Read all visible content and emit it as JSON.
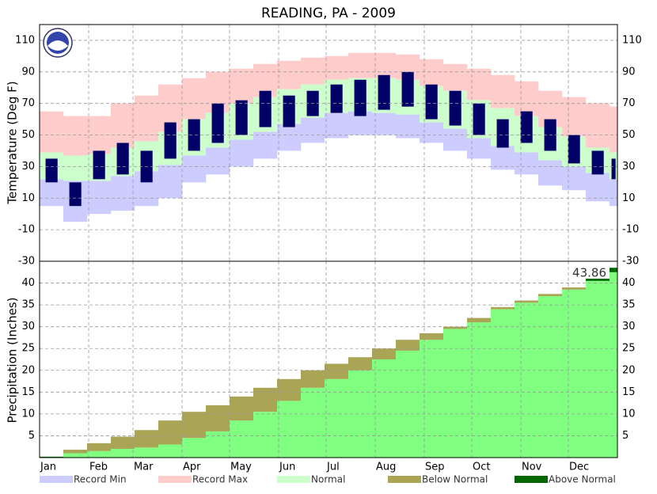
{
  "chart_data": [
    {
      "type": "climate-temperature",
      "title": "READING, PA - 2009",
      "y_label": "Temperature (Deg F)",
      "x": [
        1,
        16,
        31,
        46,
        61,
        76,
        91,
        106,
        121,
        136,
        151,
        166,
        181,
        196,
        211,
        226,
        241,
        256,
        271,
        286,
        301,
        316,
        331,
        346,
        361
      ],
      "xlim": [
        1,
        366
      ],
      "ylim": [
        -30,
        120
      ],
      "yticks": [
        -30,
        -10,
        10,
        30,
        50,
        70,
        90,
        110
      ],
      "grid": true,
      "series": [
        {
          "name": "Record Max",
          "color": "#ffcccc",
          "values": [
            65,
            62,
            62,
            70,
            75,
            82,
            86,
            90,
            92,
            95,
            97,
            99,
            100,
            102,
            102,
            101,
            98,
            95,
            92,
            88,
            84,
            78,
            74,
            70,
            68
          ]
        },
        {
          "name": "Record Min",
          "color": "#ccccff",
          "values": [
            5,
            -5,
            0,
            2,
            5,
            10,
            20,
            25,
            30,
            35,
            40,
            45,
            48,
            50,
            50,
            48,
            45,
            40,
            35,
            28,
            25,
            18,
            15,
            8,
            5
          ]
        },
        {
          "name": "Normal",
          "color": "#ccffcc",
          "high": [
            39,
            37,
            38,
            42,
            46,
            52,
            60,
            64,
            70,
            74,
            79,
            82,
            85,
            86,
            86,
            85,
            81,
            78,
            72,
            67,
            62,
            55,
            49,
            42,
            39
          ],
          "low": [
            22,
            21,
            21,
            24,
            27,
            31,
            37,
            42,
            47,
            52,
            57,
            61,
            64,
            65,
            64,
            63,
            58,
            54,
            48,
            43,
            39,
            34,
            30,
            26,
            22
          ]
        },
        {
          "color": "#000066",
          "high": [
            35,
            20,
            40,
            45,
            40,
            58,
            60,
            70,
            72,
            78,
            75,
            78,
            82,
            85,
            88,
            90,
            82,
            78,
            70,
            60,
            65,
            60,
            50,
            40,
            35
          ],
          "low": [
            20,
            5,
            22,
            25,
            20,
            35,
            40,
            45,
            50,
            55,
            55,
            62,
            64,
            62,
            66,
            68,
            60,
            56,
            50,
            42,
            45,
            40,
            32,
            25,
            22
          ]
        }
      ]
    },
    {
      "type": "climate-precipitation",
      "y_label": "Precipitation (Inches)",
      "annotation": "43.86",
      "x": [
        1,
        16,
        31,
        46,
        61,
        76,
        91,
        106,
        121,
        136,
        151,
        166,
        181,
        196,
        211,
        226,
        241,
        256,
        271,
        286,
        301,
        316,
        331,
        346,
        361
      ],
      "xlim": [
        1,
        366
      ],
      "ylim": [
        0,
        45
      ],
      "yticks": [
        5,
        10,
        15,
        20,
        25,
        30,
        35,
        40
      ],
      "grid": true,
      "xticks": [
        {
          "value": 1,
          "label": "Jan"
        },
        {
          "value": 32,
          "label": "Feb"
        },
        {
          "value": 60,
          "label": "Mar"
        },
        {
          "value": 91,
          "label": "Apr"
        },
        {
          "value": 121,
          "label": "May"
        },
        {
          "value": 152,
          "label": "Jun"
        },
        {
          "value": 182,
          "label": "Jul"
        },
        {
          "value": 213,
          "label": "Aug"
        },
        {
          "value": 244,
          "label": "Sep"
        },
        {
          "value": 274,
          "label": "Oct"
        },
        {
          "value": 305,
          "label": "Nov"
        },
        {
          "value": 335,
          "label": "Dec"
        }
      ],
      "series": [
        {
          "color": "#80ff80",
          "values": [
            0.2,
            1,
            1.5,
            2,
            2.3,
            3,
            4.5,
            6,
            8.5,
            10.5,
            13,
            16,
            18,
            20,
            22.5,
            24.5,
            27,
            29.5,
            31,
            34,
            35.5,
            37,
            38.5,
            41,
            43.5
          ]
        },
        {
          "values": [
            0.1,
            1.8,
            3.3,
            4.8,
            6.3,
            8.5,
            10.5,
            12,
            14,
            16,
            18,
            20,
            21.5,
            23,
            25,
            27,
            28.5,
            30,
            32,
            34.5,
            36,
            37.5,
            39,
            40.5,
            42.5
          ]
        }
      ],
      "fills": [
        {
          "name": "Below Normal",
          "color": "#aaa455"
        },
        {
          "name": "Above Normal",
          "color": "#006600"
        }
      ]
    }
  ]
}
